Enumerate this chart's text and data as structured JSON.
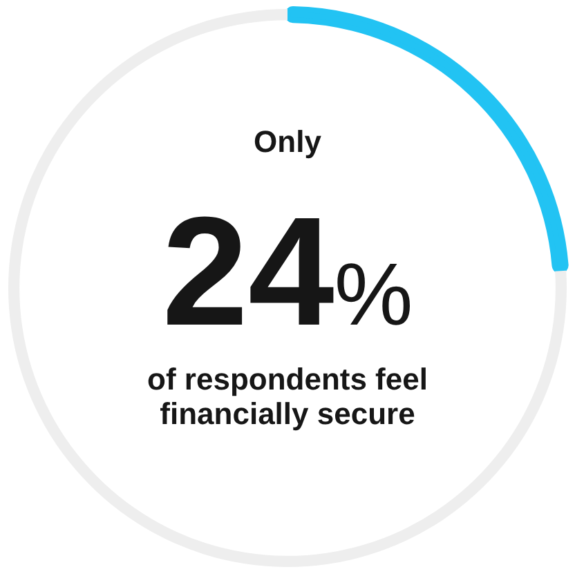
{
  "chart_data": {
    "type": "donut",
    "categories": [
      null,
      null
    ],
    "values": [
      24,
      76
    ],
    "colors": [
      "#22c3f3",
      "#eeeeee"
    ],
    "value_labels": [
      "24%",
      null
    ],
    "annotations": [
      "Only",
      "of respondents feel financially secure"
    ],
    "legend": false
  }
}
